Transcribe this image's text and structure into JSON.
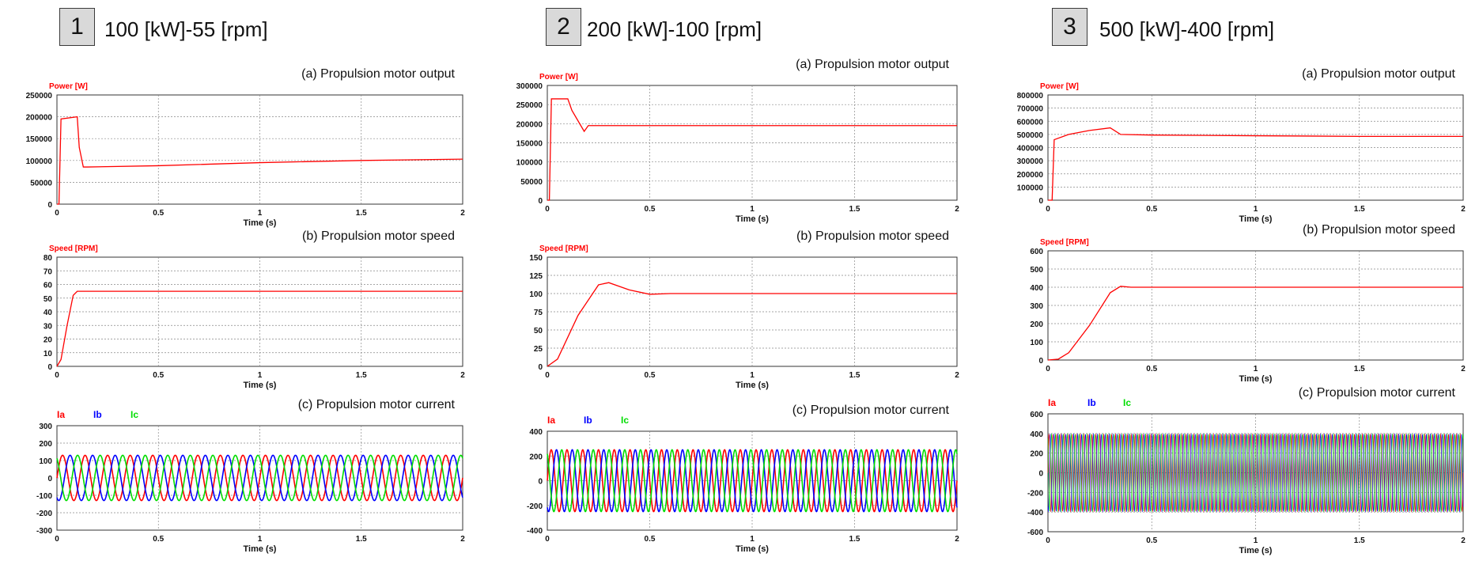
{
  "cases": [
    {
      "number": "1",
      "title": "100 [kW]-55 [rpm]",
      "panels": [
        {
          "key": "power",
          "caption": "(a) Propulsion motor output",
          "ylabel": "Power [W]",
          "legend": [],
          "xlabel": "Time (s)",
          "yticks": [
            "0",
            "50000",
            "100000",
            "150000",
            "200000",
            "250000"
          ],
          "xticks": [
            "0",
            "0.5",
            "1",
            "1.5",
            "2"
          ]
        },
        {
          "key": "speed",
          "caption": "(b) Propulsion motor speed",
          "ylabel": "Speed [RPM]",
          "legend": [],
          "xlabel": "Time (s)",
          "yticks": [
            "0",
            "10",
            "20",
            "30",
            "40",
            "50",
            "60",
            "70",
            "80"
          ],
          "xticks": [
            "0",
            "0.5",
            "1",
            "1.5",
            "2"
          ]
        },
        {
          "key": "current",
          "caption": "(c) Propulsion motor current",
          "ylabel": "",
          "legend": [
            "Ia",
            "Ib",
            "Ic"
          ],
          "xlabel": "Time (s)",
          "yticks": [
            "-300",
            "-200",
            "-100",
            "0",
            "100",
            "200",
            "300"
          ],
          "xticks": [
            "0",
            "0.5",
            "1",
            "1.5",
            "2"
          ]
        }
      ]
    },
    {
      "number": "2",
      "title": "200 [kW]-100 [rpm]",
      "panels": [
        {
          "key": "power",
          "caption": "(a) Propulsion motor output",
          "ylabel": "Power [W]",
          "legend": [],
          "xlabel": "Time (s)",
          "yticks": [
            "0",
            "50000",
            "100000",
            "150000",
            "200000",
            "250000",
            "300000"
          ],
          "xticks": [
            "0",
            "0.5",
            "1",
            "1.5",
            "2"
          ]
        },
        {
          "key": "speed",
          "caption": "(b) Propulsion motor speed",
          "ylabel": "Speed [RPM]",
          "legend": [],
          "xlabel": "Time (s)",
          "yticks": [
            "0",
            "25",
            "50",
            "75",
            "100",
            "125",
            "150"
          ],
          "xticks": [
            "0",
            "0.5",
            "1",
            "1.5",
            "2"
          ]
        },
        {
          "key": "current",
          "caption": "(c) Propulsion motor current",
          "ylabel": "",
          "legend": [
            "Ia",
            "Ib",
            "Ic"
          ],
          "xlabel": "Time (s)",
          "yticks": [
            "-400",
            "-200",
            "0",
            "200",
            "400"
          ],
          "xticks": [
            "0",
            "0.5",
            "1",
            "1.5",
            "2"
          ]
        }
      ]
    },
    {
      "number": "3",
      "title": "500 [kW]-400 [rpm]",
      "panels": [
        {
          "key": "power",
          "caption": "(a) Propulsion motor output",
          "ylabel": "Power [W]",
          "legend": [],
          "xlabel": "Time (s)",
          "yticks": [
            "0",
            "100000",
            "200000",
            "300000",
            "400000",
            "500000",
            "600000",
            "700000",
            "800000"
          ],
          "xticks": [
            "0",
            "0.5",
            "1",
            "1.5",
            "2"
          ]
        },
        {
          "key": "speed",
          "caption": "(b) Propulsion motor speed",
          "ylabel": "Speed [RPM]",
          "legend": [],
          "xlabel": "Time (s)",
          "yticks": [
            "0",
            "100",
            "200",
            "300",
            "400",
            "500",
            "600"
          ],
          "xticks": [
            "0",
            "0.5",
            "1",
            "1.5",
            "2"
          ]
        },
        {
          "key": "current",
          "caption": "(c) Propulsion motor current",
          "ylabel": "",
          "legend": [
            "Ia",
            "Ib",
            "Ic"
          ],
          "xlabel": "Time (s)",
          "yticks": [
            "-600",
            "-400",
            "-200",
            "0",
            "200",
            "400",
            "600"
          ],
          "xticks": [
            "0",
            "0.5",
            "1",
            "1.5",
            "2"
          ]
        }
      ]
    }
  ],
  "colors": {
    "ia": "#ff0000",
    "ib": "#0000ff",
    "ic": "#00dd00",
    "grid": "#888888",
    "label": "#ff0000"
  },
  "chart_data": [
    {
      "type": "line",
      "case": "1",
      "panel": "power",
      "xlim": [
        0,
        2
      ],
      "ylim": [
        0,
        250000
      ],
      "grid": true,
      "series": [
        {
          "x": [
            0,
            0.01,
            0.02,
            0.1,
            0.11,
            0.13,
            0.15,
            0.5,
            1,
            1.5,
            2
          ],
          "values": [
            0,
            0,
            195000,
            200000,
            130000,
            85000,
            85000,
            88000,
            95000,
            100000,
            103000
          ]
        }
      ]
    },
    {
      "type": "line",
      "case": "1",
      "panel": "speed",
      "xlim": [
        0,
        2
      ],
      "ylim": [
        0,
        80
      ],
      "grid": true,
      "series": [
        {
          "x": [
            0,
            0.02,
            0.05,
            0.08,
            0.1,
            0.5,
            1,
            1.5,
            2
          ],
          "values": [
            0,
            5,
            30,
            52,
            55,
            55,
            55,
            55,
            55
          ]
        }
      ]
    },
    {
      "type": "line",
      "case": "1",
      "panel": "current",
      "xlim": [
        0,
        2
      ],
      "ylim": [
        -300,
        300
      ],
      "grid": true,
      "series": [
        {
          "name": "Ia",
          "amplitude": 130,
          "frequency_hz": 9,
          "phase_deg": 0
        },
        {
          "name": "Ib",
          "amplitude": 130,
          "frequency_hz": 9,
          "phase_deg": -120
        },
        {
          "name": "Ic",
          "amplitude": 130,
          "frequency_hz": 9,
          "phase_deg": 120
        }
      ]
    },
    {
      "type": "line",
      "case": "2",
      "panel": "power",
      "xlim": [
        0,
        2
      ],
      "ylim": [
        0,
        300000
      ],
      "grid": true,
      "series": [
        {
          "x": [
            0,
            0.01,
            0.02,
            0.1,
            0.12,
            0.18,
            0.2,
            0.25,
            2
          ],
          "values": [
            0,
            0,
            265000,
            265000,
            235000,
            180000,
            195000,
            195000,
            195000
          ]
        }
      ]
    },
    {
      "type": "line",
      "case": "2",
      "panel": "speed",
      "xlim": [
        0,
        2
      ],
      "ylim": [
        0,
        150
      ],
      "grid": true,
      "series": [
        {
          "x": [
            0,
            0.05,
            0.15,
            0.25,
            0.3,
            0.4,
            0.5,
            0.6,
            1,
            1.5,
            2
          ],
          "values": [
            0,
            10,
            70,
            112,
            115,
            105,
            99,
            100,
            100,
            100,
            100
          ]
        }
      ]
    },
    {
      "type": "line",
      "case": "2",
      "panel": "current",
      "xlim": [
        0,
        2
      ],
      "ylim": [
        -400,
        400
      ],
      "grid": true,
      "series": [
        {
          "name": "Ia",
          "amplitude": 250,
          "frequency_hz": 13,
          "phase_deg": 0
        },
        {
          "name": "Ib",
          "amplitude": 250,
          "frequency_hz": 13,
          "phase_deg": -120
        },
        {
          "name": "Ic",
          "amplitude": 250,
          "frequency_hz": 13,
          "phase_deg": 120
        }
      ]
    },
    {
      "type": "line",
      "case": "3",
      "panel": "power",
      "xlim": [
        0,
        2
      ],
      "ylim": [
        0,
        800000
      ],
      "grid": true,
      "series": [
        {
          "x": [
            0,
            0.02,
            0.03,
            0.1,
            0.2,
            0.3,
            0.35,
            0.5,
            1,
            1.5,
            2
          ],
          "values": [
            0,
            0,
            460000,
            500000,
            530000,
            550000,
            500000,
            495000,
            490000,
            485000,
            485000
          ]
        }
      ]
    },
    {
      "type": "line",
      "case": "3",
      "panel": "speed",
      "xlim": [
        0,
        2
      ],
      "ylim": [
        0,
        600
      ],
      "grid": true,
      "series": [
        {
          "x": [
            0,
            0.05,
            0.1,
            0.2,
            0.3,
            0.35,
            0.4,
            1,
            1.5,
            2
          ],
          "values": [
            0,
            5,
            40,
            190,
            370,
            405,
            400,
            400,
            400,
            400
          ]
        }
      ]
    },
    {
      "type": "line",
      "case": "3",
      "panel": "current",
      "xlim": [
        0,
        2
      ],
      "ylim": [
        -600,
        600
      ],
      "grid": true,
      "series": [
        {
          "name": "Ia",
          "amplitude": 400,
          "frequency_hz": 53,
          "phase_deg": 0
        },
        {
          "name": "Ib",
          "amplitude": 400,
          "frequency_hz": 53,
          "phase_deg": -120
        },
        {
          "name": "Ic",
          "amplitude": 400,
          "frequency_hz": 53,
          "phase_deg": 120
        }
      ]
    }
  ]
}
